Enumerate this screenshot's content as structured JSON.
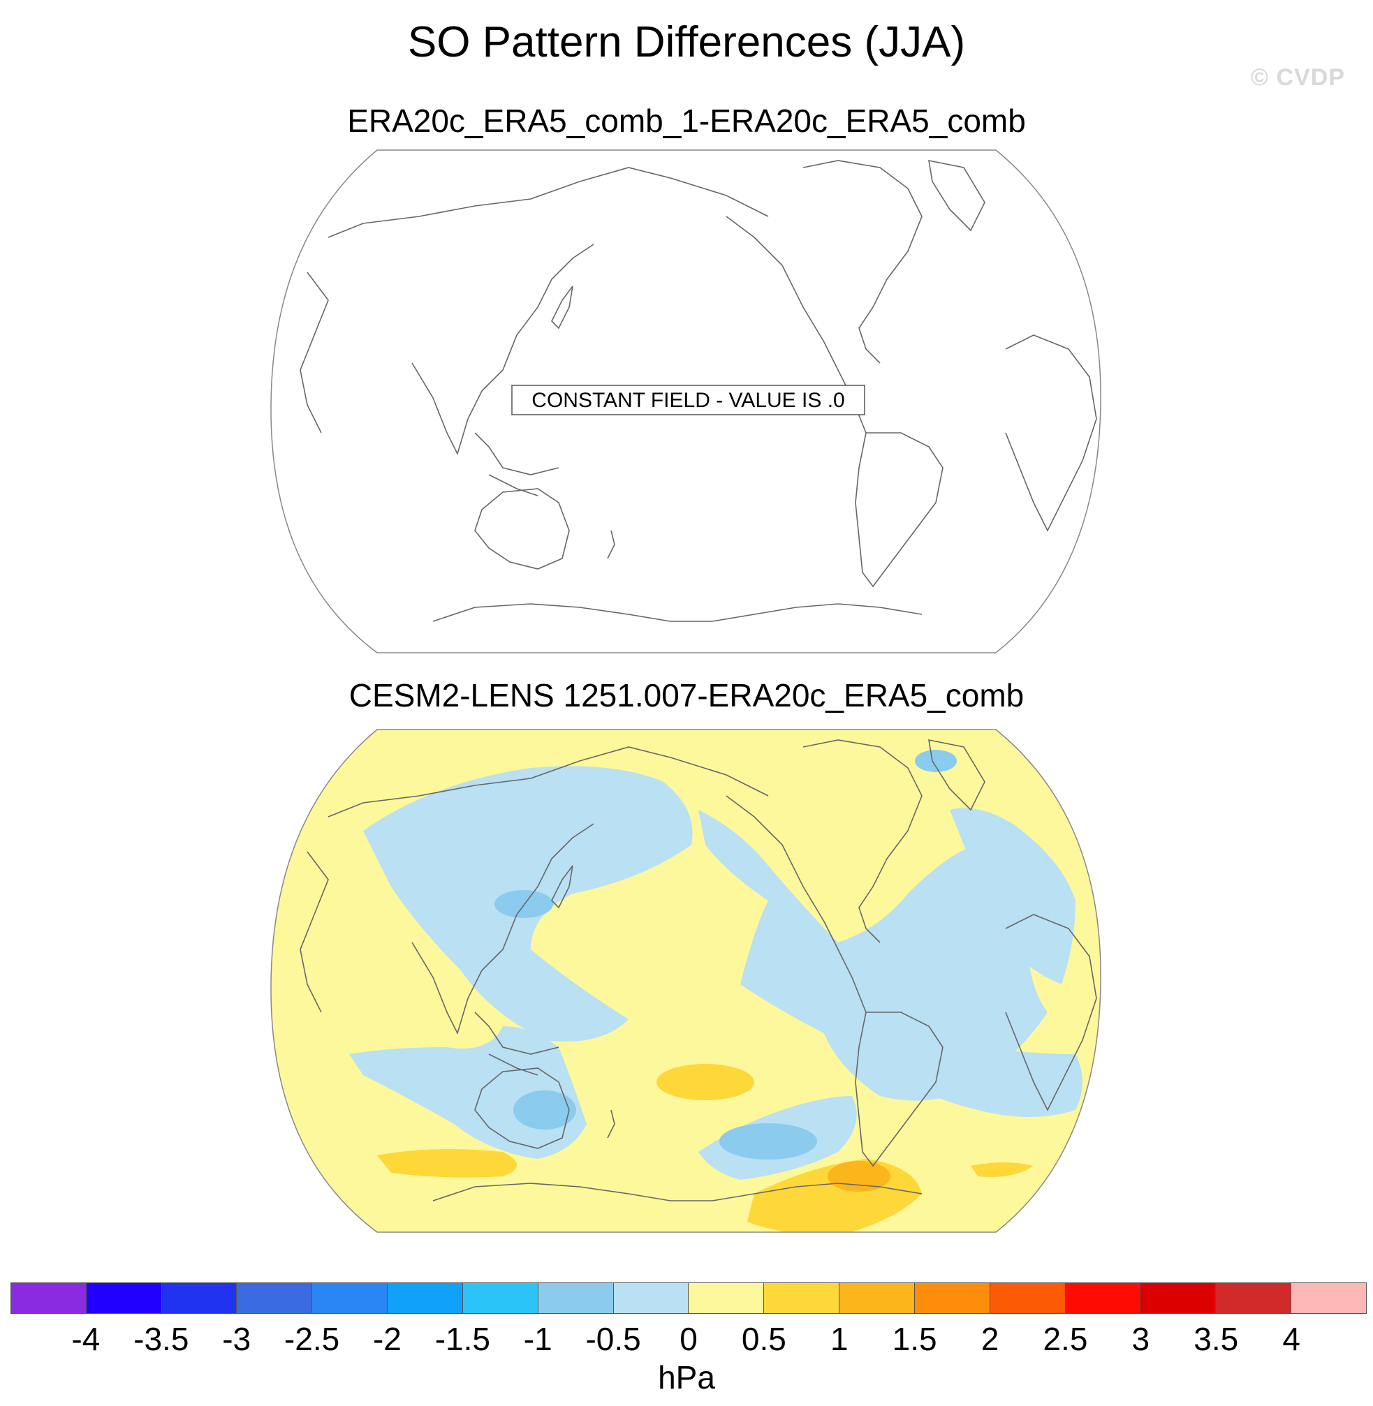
{
  "title": "SO Pattern Differences (JJA)",
  "watermark": "© CVDP",
  "panels": [
    {
      "title": "ERA20c_ERA5_comb_1-ERA20c_ERA5_comb",
      "message": "CONSTANT FIELD - VALUE IS .0"
    },
    {
      "title": "CESM2-LENS 1251.007-ERA20c_ERA5_comb"
    }
  ],
  "colorbar": {
    "units": "hPa",
    "ticks": [
      "-4",
      "-3.5",
      "-3",
      "-2.5",
      "-2",
      "-1.5",
      "-1",
      "-0.5",
      "0",
      "0.5",
      "1",
      "1.5",
      "2",
      "2.5",
      "3",
      "3.5",
      "4"
    ],
    "colors": [
      "#8a2be2",
      "#2200ff",
      "#1f33f0",
      "#3b6be0",
      "#2a85f5",
      "#10a2fa",
      "#2ac4f9",
      "#8acbee",
      "#b9e0f3",
      "#fdf89c",
      "#fdd838",
      "#fdb51c",
      "#fd8d0b",
      "#fd5a05",
      "#fd0c04",
      "#dd0000",
      "#d22a2a",
      "#feb7b7"
    ]
  },
  "map_colors": {
    "neg_light": "#b9e0f3",
    "neg_mid": "#8acbee",
    "pos_light": "#fdf89c",
    "pos_mid": "#fdd838",
    "pos_strong": "#fdb51c",
    "coast": "#666666"
  }
}
